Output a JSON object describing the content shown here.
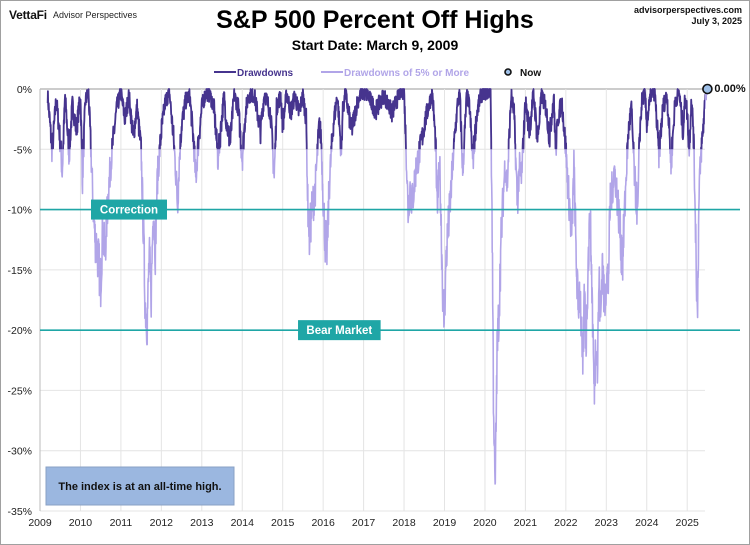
{
  "header": {
    "brand": "VettaFi",
    "brand_sub": "Advisor Perspectives",
    "site": "advisorperspectives.com",
    "date": "July 3, 2025"
  },
  "chart_data": {
    "type": "line",
    "title": "S&P 500 Percent Off Highs",
    "subtitle": "Start Date: March 9, 2009",
    "xlabel": "",
    "ylabel": "",
    "xlim": [
      2009.0,
      2025.7
    ],
    "ylim": [
      -35,
      0
    ],
    "grid": true,
    "x_ticks": [
      "2009",
      "2010",
      "2011",
      "2012",
      "2013",
      "2014",
      "2015",
      "2016",
      "2017",
      "2018",
      "2019",
      "2020",
      "2021",
      "2022",
      "2023",
      "2024",
      "2025"
    ],
    "y_ticks": [
      "0%",
      "-5%",
      "-10%",
      "-15%",
      "-20%",
      "-25%",
      "-30%",
      "-35%"
    ],
    "y_tick_values": [
      0,
      -5,
      -10,
      -15,
      -20,
      -25,
      -30,
      -35
    ],
    "legend": {
      "placement": "top",
      "entries": [
        {
          "name": "Drawdowns",
          "color": "#46348e"
        },
        {
          "name": "Drawdowns of 5% or More",
          "color": "#b1a5e8"
        },
        {
          "name": "Now",
          "color": "#9fc0e8"
        }
      ]
    },
    "reference_lines": [
      {
        "label": "Correction",
        "value": -10,
        "color": "#1fa6a6",
        "label_x": 2011.2
      },
      {
        "label": "Bear Market",
        "value": -20,
        "color": "#1fa6a6",
        "label_x": 2016.4
      }
    ],
    "now": {
      "x": 2025.5,
      "value": 0.0,
      "label": "0.00%"
    },
    "threshold": -5,
    "series": [
      {
        "name": "Drawdowns",
        "x": [
          2009.19,
          2009.3,
          2009.4,
          2009.48,
          2009.55,
          2009.62,
          2009.72,
          2009.8,
          2009.9,
          2010.0,
          2010.05,
          2010.12,
          2010.2,
          2010.3,
          2010.35,
          2010.42,
          2010.5,
          2010.55,
          2010.6,
          2010.7,
          2010.8,
          2010.9,
          2011.0,
          2011.1,
          2011.2,
          2011.3,
          2011.4,
          2011.5,
          2011.55,
          2011.6,
          2011.65,
          2011.7,
          2011.75,
          2011.8,
          2011.85,
          2011.9,
          2012.0,
          2012.1,
          2012.2,
          2012.3,
          2012.35,
          2012.4,
          2012.45,
          2012.5,
          2012.6,
          2012.7,
          2012.8,
          2012.85,
          2012.9,
          2013.0,
          2013.1,
          2013.2,
          2013.3,
          2013.4,
          2013.45,
          2013.55,
          2013.6,
          2013.7,
          2013.8,
          2013.9,
          2014.0,
          2014.08,
          2014.15,
          2014.3,
          2014.45,
          2014.55,
          2014.7,
          2014.79,
          2014.85,
          2014.95,
          2015.0,
          2015.1,
          2015.2,
          2015.3,
          2015.4,
          2015.5,
          2015.58,
          2015.62,
          2015.66,
          2015.72,
          2015.8,
          2015.9,
          2015.95,
          2016.0,
          2016.05,
          2016.1,
          2016.15,
          2016.25,
          2016.35,
          2016.45,
          2016.48,
          2016.55,
          2016.7,
          2016.85,
          2016.95,
          2017.1,
          2017.3,
          2017.5,
          2017.7,
          2017.9,
          2018.0,
          2018.05,
          2018.1,
          2018.15,
          2018.2,
          2018.3,
          2018.4,
          2018.5,
          2018.6,
          2018.7,
          2018.78,
          2018.82,
          2018.88,
          2018.93,
          2018.98,
          2019.05,
          2019.15,
          2019.25,
          2019.33,
          2019.38,
          2019.45,
          2019.55,
          2019.62,
          2019.7,
          2019.8,
          2019.9,
          2020.0,
          2020.1,
          2020.14,
          2020.18,
          2020.21,
          2020.25,
          2020.3,
          2020.35,
          2020.4,
          2020.45,
          2020.5,
          2020.55,
          2020.6,
          2020.65,
          2020.72,
          2020.8,
          2020.85,
          2020.9,
          2021.0,
          2021.1,
          2021.2,
          2021.3,
          2021.4,
          2021.5,
          2021.6,
          2021.7,
          2021.75,
          2021.8,
          2021.9,
          2022.0,
          2022.05,
          2022.1,
          2022.15,
          2022.2,
          2022.25,
          2022.3,
          2022.35,
          2022.42,
          2022.46,
          2022.5,
          2022.55,
          2022.6,
          2022.65,
          2022.7,
          2022.75,
          2022.78,
          2022.82,
          2022.86,
          2022.9,
          2022.95,
          2023.0,
          2023.05,
          2023.1,
          2023.15,
          2023.2,
          2023.3,
          2023.4,
          2023.5,
          2023.55,
          2023.62,
          2023.7,
          2023.78,
          2023.82,
          2023.88,
          2023.95,
          2024.0,
          2024.1,
          2024.2,
          2024.3,
          2024.4,
          2024.5,
          2024.55,
          2024.6,
          2024.7,
          2024.8,
          2024.9,
          2024.95,
          2025.0,
          2025.05,
          2025.1,
          2025.15,
          2025.2,
          2025.25,
          2025.27,
          2025.3,
          2025.35,
          2025.4,
          2025.45,
          2025.5
        ],
        "values": [
          -0.5,
          -5.2,
          -0.8,
          -3.6,
          -6.9,
          -0.5,
          -5.5,
          -1.2,
          -3.4,
          -0.5,
          -7.5,
          -1.0,
          -0.3,
          -8.5,
          -12.0,
          -13.5,
          -16.0,
          -11.5,
          -13.8,
          -8.0,
          -4.5,
          -1.5,
          -0.3,
          -2.5,
          -0.5,
          -4.0,
          -1.5,
          -5.2,
          -11.0,
          -17.8,
          -19.4,
          -14.0,
          -17.0,
          -9.5,
          -13.2,
          -7.5,
          -3.5,
          -1.0,
          -0.3,
          -4.0,
          -6.5,
          -9.5,
          -5.5,
          -3.0,
          -1.0,
          -0.5,
          -4.5,
          -7.5,
          -5.0,
          -1.5,
          -0.3,
          -0.5,
          -1.5,
          -5.8,
          -4.0,
          -0.5,
          -2.5,
          -4.5,
          -0.5,
          -1.5,
          -5.8,
          -2.0,
          -0.5,
          -0.5,
          -3.5,
          -0.3,
          -2.0,
          -7.4,
          -1.5,
          -0.5,
          -3.0,
          -0.3,
          -2.0,
          -0.5,
          -2.0,
          -0.5,
          -2.5,
          -9.5,
          -12.3,
          -10.0,
          -8.5,
          -3.0,
          -4.0,
          -9.0,
          -12.5,
          -13.3,
          -8.0,
          -3.0,
          -0.5,
          -5.3,
          -2.0,
          -0.3,
          -3.5,
          -1.0,
          -0.3,
          -0.5,
          -1.8,
          -0.5,
          -2.0,
          -0.3,
          -0.2,
          -4.8,
          -10.2,
          -8.0,
          -9.5,
          -6.5,
          -5.0,
          -3.0,
          -1.5,
          -0.3,
          -4.5,
          -10.0,
          -6.0,
          -13.0,
          -19.8,
          -13.5,
          -9.0,
          -4.0,
          -1.0,
          -0.5,
          -6.8,
          -0.5,
          -1.5,
          -6.0,
          -2.0,
          -0.5,
          -0.3,
          -0.2,
          -0.3,
          -12.0,
          -25.0,
          -33.9,
          -22.0,
          -18.0,
          -12.5,
          -9.0,
          -6.0,
          -8.0,
          -4.0,
          -0.5,
          -2.0,
          -9.5,
          -6.5,
          -7.6,
          -1.0,
          -3.5,
          -0.3,
          -4.2,
          -0.5,
          -1.5,
          -4.0,
          -0.5,
          -5.2,
          -2.5,
          -1.0,
          -5.0,
          -8.0,
          -10.0,
          -12.5,
          -6.0,
          -13.5,
          -18.0,
          -16.5,
          -23.5,
          -17.0,
          -21.0,
          -14.5,
          -10.5,
          -17.0,
          -25.2,
          -20.0,
          -23.5,
          -16.0,
          -19.5,
          -14.0,
          -18.0,
          -15.5,
          -16.0,
          -9.0,
          -8.3,
          -6.5,
          -10.0,
          -14.5,
          -6.5,
          -3.5,
          -1.5,
          -7.5,
          -10.5,
          -4.0,
          -1.0,
          -0.3,
          -2.8,
          -0.5,
          -0.3,
          -5.5,
          -1.5,
          -0.5,
          -3.0,
          -6.3,
          -1.0,
          -0.3,
          -3.5,
          -0.5,
          -2.0,
          -5.0,
          -1.0,
          -3.0,
          -10.0,
          -18.9,
          -14.0,
          -8.0,
          -5.0,
          -3.0,
          -0.5,
          0.0
        ]
      }
    ]
  },
  "annotation": {
    "text": "The index is at an all-time high."
  }
}
